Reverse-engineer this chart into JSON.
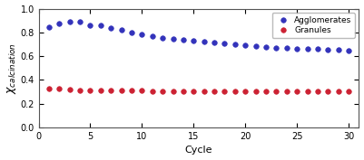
{
  "agglomerates_x": [
    1,
    2,
    3,
    4,
    5,
    6,
    7,
    8,
    9,
    10,
    11,
    12,
    13,
    14,
    15,
    16,
    17,
    18,
    19,
    20,
    21,
    22,
    23,
    24,
    25,
    26,
    27,
    28,
    29,
    30
  ],
  "agglomerates_y": [
    0.845,
    0.878,
    0.89,
    0.888,
    0.862,
    0.856,
    0.84,
    0.82,
    0.8,
    0.78,
    0.768,
    0.756,
    0.748,
    0.738,
    0.73,
    0.72,
    0.712,
    0.705,
    0.697,
    0.69,
    0.682,
    0.678,
    0.672,
    0.668,
    0.665,
    0.663,
    0.66,
    0.658,
    0.653,
    0.648
  ],
  "granules_x": [
    1,
    2,
    3,
    4,
    5,
    6,
    7,
    8,
    9,
    10,
    11,
    12,
    13,
    14,
    15,
    16,
    17,
    18,
    19,
    20,
    21,
    22,
    23,
    24,
    25,
    26,
    27,
    28,
    29,
    30
  ],
  "granules_y": [
    0.325,
    0.33,
    0.32,
    0.315,
    0.315,
    0.313,
    0.312,
    0.31,
    0.31,
    0.31,
    0.308,
    0.308,
    0.307,
    0.307,
    0.307,
    0.306,
    0.306,
    0.306,
    0.305,
    0.305,
    0.305,
    0.305,
    0.305,
    0.304,
    0.304,
    0.304,
    0.304,
    0.304,
    0.303,
    0.303
  ],
  "agglomerate_color": "#3333bb",
  "granule_color": "#cc2233",
  "xlabel": "Cycle",
  "ylabel": "$\\chi_{calcination}$",
  "xlim": [
    0,
    31
  ],
  "ylim": [
    0,
    1
  ],
  "xticks": [
    0,
    5,
    10,
    15,
    20,
    25,
    30
  ],
  "yticks": [
    0,
    0.2,
    0.4,
    0.6,
    0.8,
    1.0
  ],
  "legend_labels": [
    "Agglomerates",
    "Granules"
  ],
  "marker": "o",
  "markersize": 4.0,
  "background_color": "#ffffff"
}
